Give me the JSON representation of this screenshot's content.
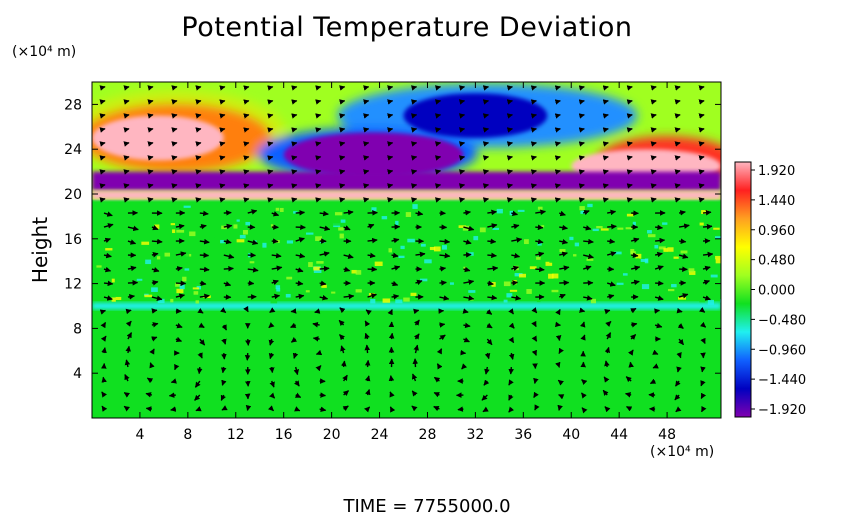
{
  "chart_data": {
    "type": "heatmap",
    "title": "Potential Temperature Deviation",
    "ylabel": "Height",
    "x_unit_label": "(×10⁴ m)",
    "y_unit_label": "(×10⁴ m)",
    "footer": "TIME  =  7755000.0",
    "xlim": [
      0,
      52.5
    ],
    "ylim": [
      0,
      30
    ],
    "x_ticks": [
      4,
      8,
      12,
      16,
      20,
      24,
      28,
      32,
      36,
      40,
      44,
      48
    ],
    "y_ticks": [
      4,
      8,
      12,
      16,
      20,
      24,
      28
    ],
    "colorbar": {
      "min": -1.92,
      "max": 1.92,
      "labels": [
        "1.920",
        "1.440",
        "0.960",
        "0.480",
        "0.000",
        "−0.480",
        "−0.960",
        "−1.440",
        "−1.920"
      ],
      "colors": [
        "#ffb6c1",
        "#ff2020",
        "#ffa020",
        "#ffff00",
        "#a0ff20",
        "#10e020",
        "#20f0f0",
        "#1060ff",
        "#0000c0",
        "#8000b0"
      ]
    },
    "field_regions": [
      {
        "feature": "positive anomaly",
        "x": [
          0,
          11
        ],
        "y": [
          23,
          27
        ],
        "level": 1.92
      },
      {
        "feature": "negative anomaly",
        "x": [
          16,
          31
        ],
        "y": [
          21.5,
          25.5
        ],
        "level": -1.92
      },
      {
        "feature": "negative anomaly",
        "x": [
          26,
          38
        ],
        "y": [
          25,
          29
        ],
        "level": -1.44
      },
      {
        "feature": "positive anomaly",
        "x": [
          40,
          52.5
        ],
        "y": [
          21,
          24
        ],
        "level": 1.92
      },
      {
        "feature": "negative band",
        "x": [
          0,
          52.5
        ],
        "y": [
          20.3,
          22
        ],
        "level": -1.92
      },
      {
        "feature": "positive band",
        "x": [
          0,
          52.5
        ],
        "y": [
          19.5,
          20.3
        ],
        "level": 1.92
      },
      {
        "feature": "negative band",
        "x": [
          0,
          52.5
        ],
        "y": [
          9.7,
          10.3
        ],
        "level": -0.48
      },
      {
        "feature": "background",
        "x": [
          0,
          52.5
        ],
        "y": [
          0,
          19.5
        ],
        "level": 0.0
      }
    ],
    "circulation_cells": [
      {
        "center": [
          6.5,
          5
        ],
        "radius": [
          4.5,
          4.0
        ],
        "direction": "clockwise"
      },
      {
        "center": [
          19,
          5
        ],
        "radius": [
          4.0,
          4.0
        ],
        "direction": "counterclockwise"
      },
      {
        "center": [
          30.5,
          5
        ],
        "radius": [
          4.5,
          4.0
        ],
        "direction": "clockwise"
      },
      {
        "center": [
          46.5,
          5
        ],
        "radius": [
          4.0,
          4.0
        ],
        "direction": "clockwise"
      }
    ],
    "vectors": "wind velocity arrows on a regular grid"
  }
}
